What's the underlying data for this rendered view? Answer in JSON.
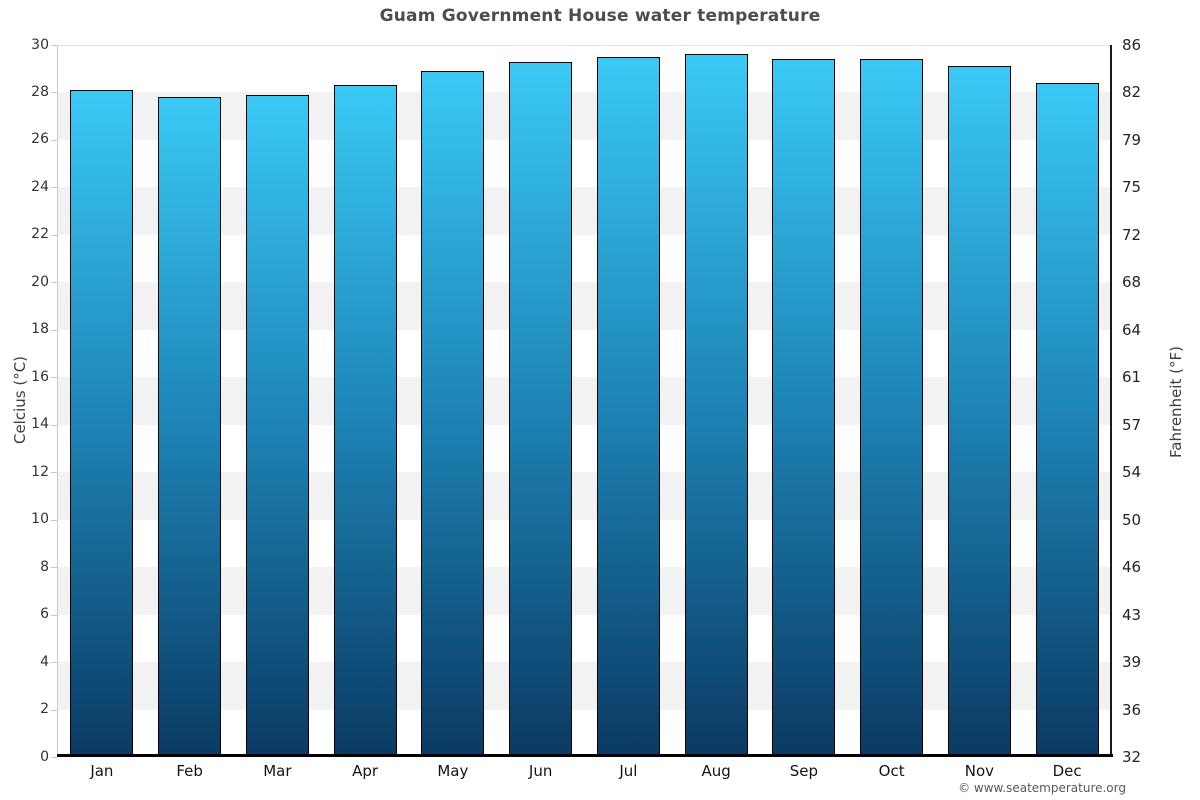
{
  "header": {
    "title": "Guam Government House water temperature"
  },
  "footer": {
    "copyright": "© www.seatemperature.org"
  },
  "chart_data": {
    "type": "bar",
    "title": "Guam Government House water temperature",
    "categories": [
      "Jan",
      "Feb",
      "Mar",
      "Apr",
      "May",
      "Jun",
      "Jul",
      "Aug",
      "Sep",
      "Oct",
      "Nov",
      "Dec"
    ],
    "values": [
      28.1,
      27.8,
      27.9,
      28.3,
      28.9,
      29.3,
      29.5,
      29.6,
      29.4,
      29.4,
      29.1,
      28.4
    ],
    "values_unit": "°C",
    "xlabel": "",
    "ylabel_left": "Celcius (°C)",
    "ylabel_right": "Fahrenheit (°F)",
    "ylim": [
      0,
      30
    ],
    "yticks_celsius": [
      0,
      2,
      4,
      6,
      8,
      10,
      12,
      14,
      16,
      18,
      20,
      22,
      24,
      26,
      28,
      30
    ],
    "yticks_fahrenheit": [
      32,
      36,
      39,
      43,
      46,
      50,
      54,
      57,
      61,
      64,
      68,
      72,
      75,
      79,
      82,
      86
    ],
    "grid": "alternating-horizontal-bands",
    "legend": "none",
    "colors": {
      "bar_gradient_top": "#3ac9f5",
      "bar_gradient_mid": "#1e86b8",
      "bar_gradient_bottom": "#0a3a63",
      "bar_border": "#000000",
      "band_gray": "#f2f2f2",
      "band_white": "#ffffff",
      "gridline": "#e3e3e3",
      "axis_left_line": "#c9c9c9",
      "axis_right_line": "#1a1a1a",
      "axis_bottom_line": "#000000",
      "title_color": "#4d4d4d",
      "tick_label_color": "#333333"
    }
  }
}
